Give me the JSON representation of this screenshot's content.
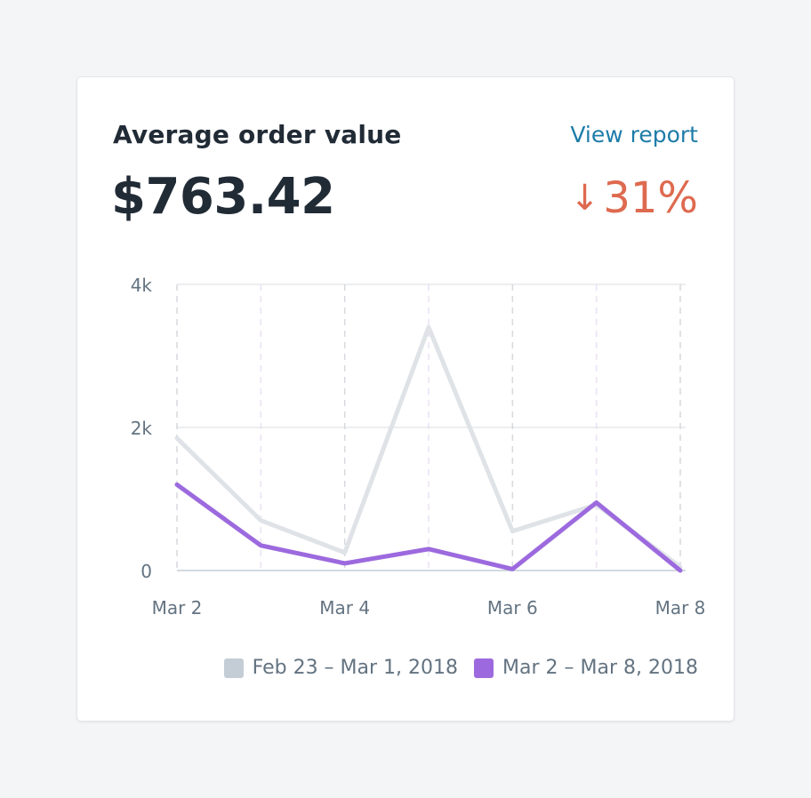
{
  "card": {
    "title": "Average order value",
    "view_report_label": "View report",
    "value": "$763.42",
    "change": {
      "arrow": "↓",
      "percent": "31%",
      "color": "#de6a4f"
    }
  },
  "chart_data": {
    "type": "line",
    "x": [
      "Mar 2",
      "Mar 3",
      "Mar 4",
      "Mar 5",
      "Mar 6",
      "Mar 7",
      "Mar 8"
    ],
    "x_tick_labels": [
      "Mar 2",
      "Mar 4",
      "Mar 6",
      "Mar 8"
    ],
    "y_tick_labels": [
      "0",
      "2k",
      "4k"
    ],
    "ylim": [
      0,
      4000
    ],
    "grid": true,
    "legend_position": "bottom-right",
    "series": [
      {
        "name": "Feb 23 – Mar 1, 2018",
        "color": "#dfe3e8",
        "values": [
          1850,
          700,
          250,
          3400,
          550,
          920,
          50
        ]
      },
      {
        "name": "Mar 2 – Mar 8, 2018",
        "color": "#9c6ade",
        "values": [
          1200,
          350,
          100,
          300,
          20,
          950,
          0
        ]
      }
    ]
  },
  "legend": {
    "swatch_colors": [
      "#c4cdd5",
      "#9c6ade"
    ]
  }
}
